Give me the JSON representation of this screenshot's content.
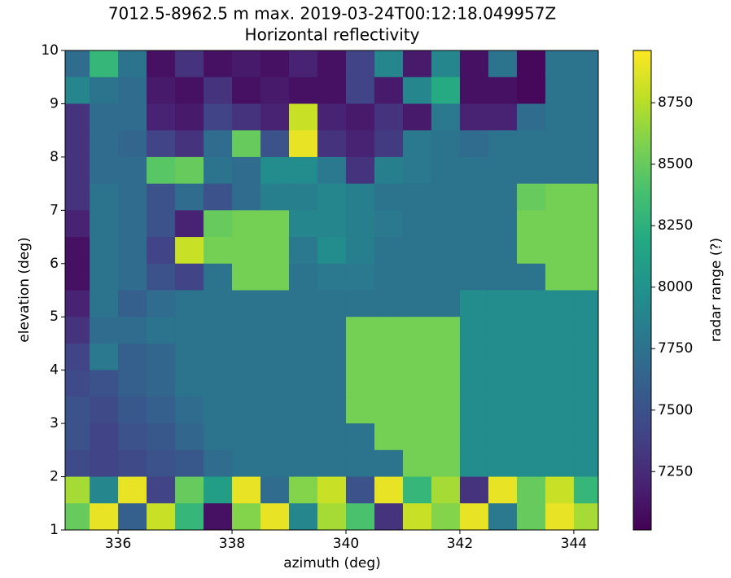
{
  "chart_data": {
    "type": "heatmap",
    "title": "7012.5-8962.5 m max. 2019-03-24T00:12:18.049957Z",
    "subtitle": "Horizontal reflectivity",
    "x_label": "azimuth (deg)",
    "y_label": "elevation (deg)",
    "colorbar_label": "radar range (?)",
    "colormap": "viridis",
    "xlim": [
      335.07,
      344.43
    ],
    "ylim": [
      1,
      10
    ],
    "clim": [
      7012.5,
      8962.5
    ],
    "xticks": [
      336,
      338,
      340,
      342,
      344
    ],
    "yticks": [
      1,
      2,
      3,
      4,
      5,
      6,
      7,
      8,
      9,
      10
    ],
    "cticks": [
      7250,
      7500,
      7750,
      8000,
      8250,
      8500,
      8750
    ],
    "x": [
      335.25,
      335.75,
      336.25,
      336.75,
      337.25,
      337.75,
      338.25,
      338.75,
      339.25,
      339.75,
      340.25,
      340.75,
      341.25,
      341.75,
      342.25,
      342.75,
      343.25,
      343.75,
      344.25
    ],
    "y": [
      9.75,
      9.25,
      8.75,
      8.25,
      7.75,
      7.25,
      6.75,
      6.25,
      5.75,
      5.25,
      4.75,
      4.25,
      3.75,
      3.25,
      2.75,
      2.25,
      1.75,
      1.25
    ],
    "z": [
      [
        7700,
        8300,
        7750,
        7100,
        7300,
        7100,
        7150,
        7100,
        7200,
        7100,
        7400,
        7900,
        7150,
        7900,
        7100,
        7750,
        7050,
        7750,
        7750
      ],
      [
        7900,
        7750,
        7700,
        7150,
        7100,
        7300,
        7100,
        7150,
        7100,
        7100,
        7400,
        7150,
        7900,
        8200,
        7100,
        7100,
        7050,
        7750,
        7750
      ],
      [
        7300,
        7700,
        7700,
        7200,
        7150,
        7400,
        7300,
        7200,
        8800,
        7200,
        7150,
        7300,
        7150,
        7800,
        7200,
        7200,
        7700,
        7750,
        7750
      ],
      [
        7300,
        7700,
        7650,
        7400,
        7300,
        7700,
        8500,
        7500,
        8900,
        7300,
        7200,
        7350,
        7800,
        7750,
        7700,
        7750,
        7750,
        7750,
        7750
      ],
      [
        7300,
        7700,
        7700,
        8450,
        8500,
        7750,
        7700,
        7950,
        7950,
        7800,
        7300,
        7850,
        7800,
        7750,
        7750,
        7750,
        7750,
        7750,
        7750
      ],
      [
        7300,
        7750,
        7700,
        7500,
        7700,
        7500,
        7700,
        7850,
        7850,
        7900,
        7850,
        7750,
        7750,
        7750,
        7750,
        7750,
        8500,
        8550,
        8550
      ],
      [
        7200,
        7750,
        7700,
        7500,
        7200,
        8500,
        8550,
        8550,
        7900,
        7900,
        7850,
        7800,
        7750,
        7750,
        7750,
        7750,
        8550,
        8550,
        8550
      ],
      [
        7100,
        7750,
        7700,
        7400,
        8800,
        8550,
        8550,
        8550,
        7800,
        7950,
        7850,
        7750,
        7750,
        7750,
        7750,
        7750,
        8550,
        8550,
        8550
      ],
      [
        7100,
        7750,
        7700,
        7500,
        7400,
        7750,
        8550,
        8550,
        7750,
        7800,
        7800,
        7750,
        7750,
        7750,
        7750,
        7750,
        7750,
        8550,
        8550
      ],
      [
        7200,
        7750,
        7600,
        7700,
        7750,
        7750,
        7750,
        7750,
        7750,
        7750,
        7750,
        7750,
        7750,
        7750,
        7950,
        7950,
        7950,
        7950,
        7950
      ],
      [
        7300,
        7700,
        7700,
        7750,
        7750,
        7750,
        7750,
        7750,
        7750,
        7750,
        8550,
        8550,
        8550,
        8550,
        7950,
        7950,
        7950,
        7950,
        7950
      ],
      [
        7400,
        7800,
        7600,
        7650,
        7750,
        7750,
        7750,
        7750,
        7750,
        7750,
        8550,
        8550,
        8550,
        8550,
        7950,
        7950,
        7950,
        7950,
        7950
      ],
      [
        7450,
        7500,
        7600,
        7650,
        7750,
        7750,
        7750,
        7750,
        7750,
        7750,
        8550,
        8550,
        8550,
        8550,
        7950,
        7950,
        7950,
        7950,
        7950
      ],
      [
        7500,
        7450,
        7550,
        7600,
        7700,
        7750,
        7750,
        7750,
        7750,
        7750,
        8550,
        8550,
        8550,
        8550,
        7950,
        7950,
        7950,
        7950,
        7950
      ],
      [
        7500,
        7400,
        7500,
        7550,
        7650,
        7750,
        7750,
        7750,
        7750,
        7750,
        7750,
        8550,
        8550,
        8550,
        7950,
        7950,
        7950,
        7950,
        7950
      ],
      [
        7450,
        7400,
        7450,
        7500,
        7550,
        7700,
        7750,
        7750,
        7750,
        7750,
        7750,
        7750,
        8550,
        8550,
        7950,
        7950,
        7950,
        7950,
        7950
      ],
      [
        8700,
        7900,
        8900,
        7400,
        8500,
        8100,
        8900,
        7700,
        8600,
        8800,
        7500,
        8900,
        8300,
        8700,
        7300,
        8900,
        8500,
        8800,
        8300
      ],
      [
        8500,
        8900,
        7600,
        8800,
        8300,
        7100,
        8600,
        8900,
        7900,
        8700,
        8400,
        7300,
        8800,
        8600,
        8900,
        7800,
        8500,
        8900,
        8700
      ]
    ]
  }
}
